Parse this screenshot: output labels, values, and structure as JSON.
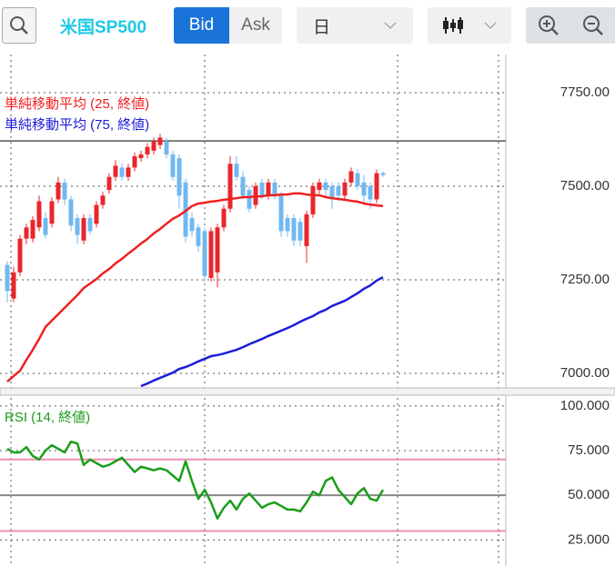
{
  "toolbar": {
    "symbol": "米国SP500",
    "bid": "Bid",
    "ask": "Ask",
    "period": "日"
  },
  "chart_data": [
    {
      "type": "candlestick",
      "open": [
        7290,
        7200,
        7270,
        7360,
        7360,
        7390,
        7415,
        7400,
        7465,
        7510,
        7465,
        7415,
        7355,
        7415,
        7400,
        7450,
        7490,
        7525,
        7550,
        7525,
        7550,
        7575,
        7585,
        7595,
        7610,
        7620,
        7585,
        7575,
        7510,
        7415,
        7390,
        7380,
        7255,
        7270,
        7390,
        7440,
        7560,
        7525,
        7490,
        7450,
        7510,
        7475,
        7510,
        7475,
        7415,
        7415,
        7405,
        7340,
        7425,
        7490,
        7510,
        7500,
        7500,
        7475,
        7510,
        7535,
        7510,
        7500,
        7465,
        7535
      ],
      "high": [
        7300,
        7285,
        7370,
        7400,
        7420,
        7475,
        7430,
        7470,
        7525,
        7520,
        7475,
        7425,
        7425,
        7425,
        7460,
        7485,
        7535,
        7570,
        7560,
        7560,
        7590,
        7595,
        7615,
        7630,
        7640,
        7630,
        7595,
        7585,
        7520,
        7430,
        7400,
        7390,
        7390,
        7400,
        7450,
        7580,
        7580,
        7540,
        7500,
        7510,
        7520,
        7520,
        7520,
        7485,
        7425,
        7425,
        7415,
        7435,
        7510,
        7520,
        7520,
        7510,
        7510,
        7520,
        7550,
        7545,
        7530,
        7510,
        7545,
        7540
      ],
      "low": [
        7190,
        7190,
        7260,
        7345,
        7350,
        7380,
        7360,
        7390,
        7455,
        7450,
        7380,
        7345,
        7345,
        7370,
        7390,
        7440,
        7480,
        7515,
        7515,
        7515,
        7540,
        7565,
        7575,
        7585,
        7600,
        7575,
        7515,
        7440,
        7350,
        7365,
        7325,
        7245,
        7245,
        7230,
        7380,
        7430,
        7515,
        7465,
        7430,
        7440,
        7465,
        7465,
        7465,
        7365,
        7365,
        7340,
        7340,
        7295,
        7415,
        7480,
        7470,
        7440,
        7460,
        7465,
        7500,
        7490,
        7455,
        7440,
        7455,
        7525
      ],
      "close": [
        7220,
        7270,
        7360,
        7390,
        7410,
        7460,
        7370,
        7460,
        7510,
        7465,
        7395,
        7370,
        7415,
        7380,
        7450,
        7475,
        7525,
        7555,
        7525,
        7550,
        7580,
        7585,
        7605,
        7620,
        7630,
        7585,
        7525,
        7475,
        7365,
        7380,
        7340,
        7260,
        7380,
        7390,
        7440,
        7560,
        7525,
        7475,
        7440,
        7500,
        7475,
        7510,
        7475,
        7380,
        7380,
        7355,
        7355,
        7425,
        7500,
        7510,
        7490,
        7465,
        7475,
        7510,
        7540,
        7500,
        7475,
        7465,
        7535,
        7530
      ],
      "up_color": "#e8262c",
      "down_color": "#72b8f0",
      "series": [
        {
          "name": "単純移動平均 (25, 終値)",
          "color": "#f02020",
          "values": [
            6978,
            6993,
            7007,
            7036,
            7063,
            7092,
            7124,
            7141,
            7158,
            7175,
            7192,
            7209,
            7228,
            7240,
            7252,
            7267,
            7279,
            7294,
            7306,
            7320,
            7333,
            7347,
            7359,
            7374,
            7386,
            7400,
            7413,
            7422,
            7434,
            7447,
            7454,
            7456,
            7459,
            7461,
            7464,
            7466,
            7468,
            7471,
            7471,
            7473,
            7473,
            7476,
            7476,
            7478,
            7478,
            7481,
            7481,
            7478,
            7476,
            7476,
            7471,
            7468,
            7466,
            7464,
            7461,
            7459,
            7454,
            7451,
            7449,
            7447
          ]
        },
        {
          "name": "単純移動平均 (75, 終値)",
          "color": "#1c1cd8",
          "values": [
            null,
            null,
            null,
            null,
            null,
            null,
            null,
            null,
            null,
            null,
            null,
            null,
            null,
            null,
            null,
            null,
            null,
            null,
            null,
            null,
            null,
            6966,
            6973,
            6981,
            6988,
            6995,
            7002,
            7012,
            7017,
            7024,
            7032,
            7039,
            7046,
            7049,
            7053,
            7058,
            7063,
            7070,
            7078,
            7085,
            7092,
            7100,
            7107,
            7114,
            7121,
            7129,
            7138,
            7146,
            7153,
            7163,
            7170,
            7180,
            7187,
            7194,
            7204,
            7214,
            7226,
            7235,
            7248,
            7257
          ]
        }
      ],
      "ref_line": {
        "value": 7621,
        "color": "#555555"
      },
      "ylim": [
        6966,
        7852
      ],
      "yticks": [
        {
          "value": 7000,
          "label": "7000.00"
        },
        {
          "value": 7250,
          "label": "7250.00"
        },
        {
          "value": 7500,
          "label": "7500.00"
        },
        {
          "value": 7750,
          "label": "7750.00"
        }
      ],
      "grid": true
    },
    {
      "type": "line",
      "series": [
        {
          "name": "RSI (14, 終値)",
          "color": "#1a9e1a",
          "values": [
            76,
            74,
            74,
            77,
            72,
            70,
            75,
            78,
            76,
            74,
            80,
            79,
            67,
            70,
            68,
            66,
            67,
            69,
            71,
            67,
            63,
            66,
            65,
            64,
            65,
            64,
            61,
            58,
            69,
            58,
            48,
            53,
            46,
            37,
            43,
            47,
            42,
            48,
            51,
            47,
            43,
            45,
            46,
            44,
            42,
            42,
            41,
            46,
            52,
            50,
            58,
            60,
            53,
            49,
            45,
            51,
            54,
            48,
            47,
            53
          ]
        }
      ],
      "hlines": [
        {
          "value": 70,
          "color": "#f08cb4"
        },
        {
          "value": 50,
          "color": "#888888"
        },
        {
          "value": 30,
          "color": "#f08cb4"
        }
      ],
      "ylim": [
        10.4,
        105.5
      ],
      "yticks": [
        {
          "value": 25,
          "label": "25.000"
        },
        {
          "value": 50,
          "label": "50.000"
        },
        {
          "value": 75,
          "label": "75.000"
        },
        {
          "value": 100,
          "label": "100.000"
        }
      ],
      "grid": true
    }
  ]
}
